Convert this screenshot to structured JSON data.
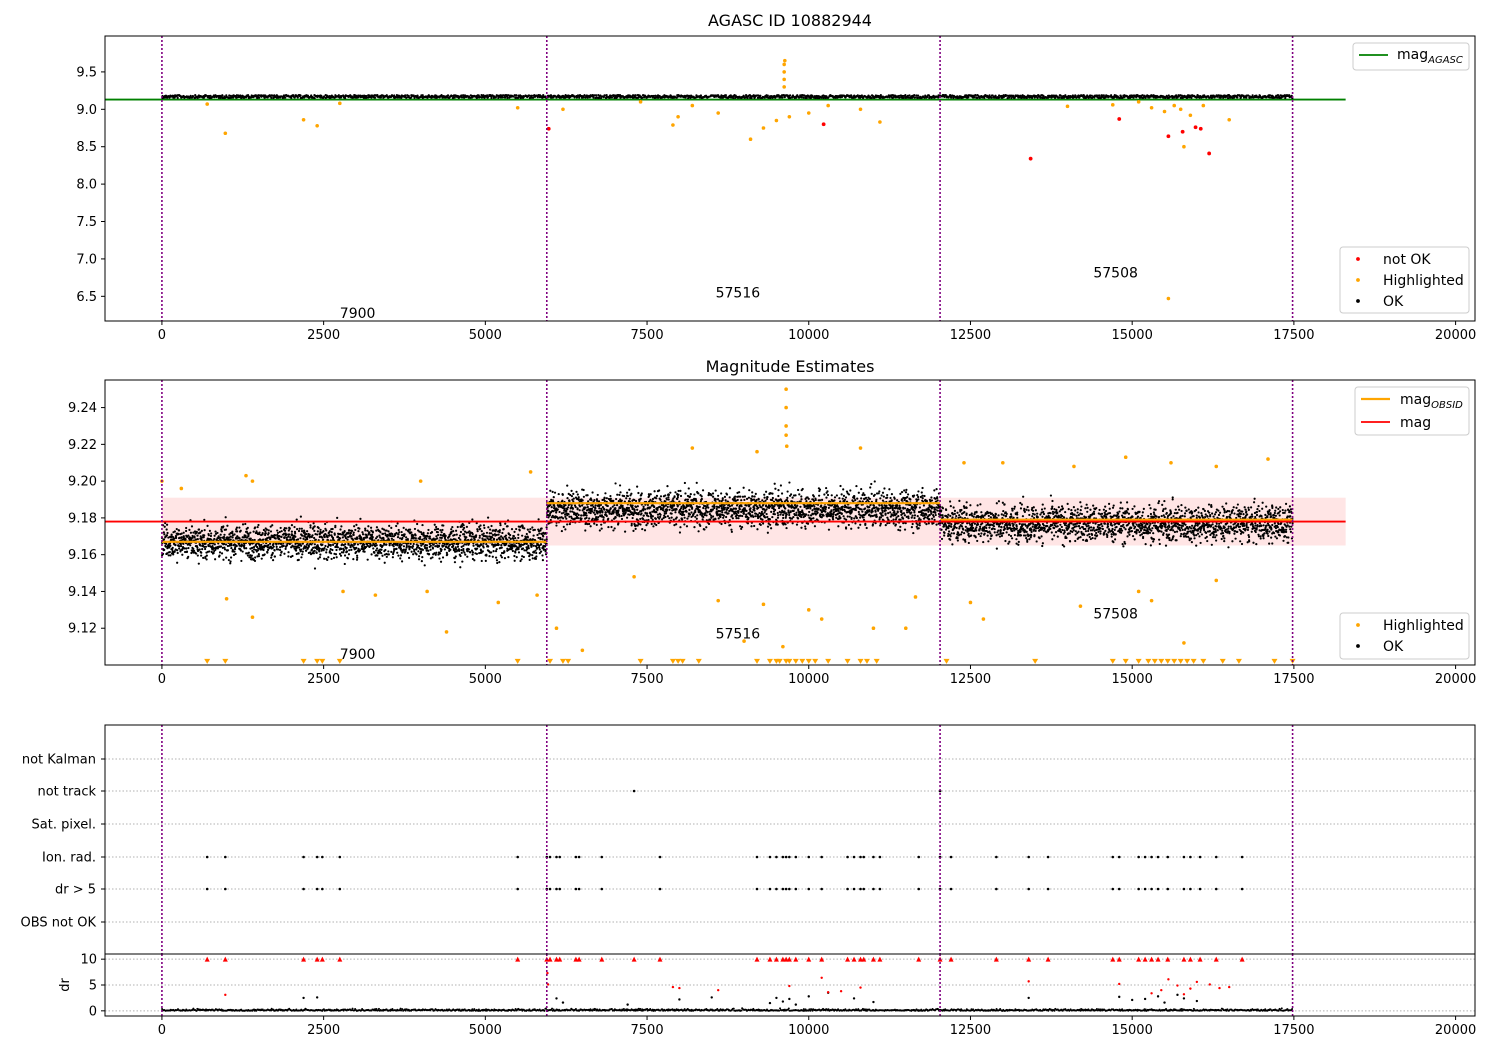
{
  "chart_data": [
    {
      "type": "scatter",
      "title": "AGASC ID 10882944",
      "xlim": [
        -880,
        20300
      ],
      "ylim": [
        6.17,
        9.98
      ],
      "xticks": [
        "0",
        "2500",
        "5000",
        "7500",
        "10000",
        "12500",
        "15000",
        "17500",
        "20000"
      ],
      "yticks": [
        "6.5",
        "7.0",
        "7.5",
        "8.0",
        "8.5",
        "9.0",
        "9.5"
      ],
      "obsid_boundaries": [
        0,
        5950,
        12030,
        17480
      ],
      "obsid_labels": [
        {
          "text": "7900",
          "x": 2750,
          "y": 6.28
        },
        {
          "text": "57516",
          "x": 8560,
          "y": 6.55
        },
        {
          "text": "57508",
          "x": 14400,
          "y": 6.82
        }
      ],
      "reference_lines": [
        {
          "name": "mag_AGASC",
          "y": 9.13,
          "x": [
            -880,
            18300
          ],
          "color": "#008000"
        }
      ],
      "ok_band": {
        "y_low": 9.15,
        "y_high": 9.19,
        "x": [
          0,
          17480
        ]
      },
      "series": [
        {
          "name": "not OK",
          "color": "#ff0000",
          "points": [
            [
              5980,
              8.74
            ],
            [
              10230,
              8.8
            ],
            [
              13430,
              8.34
            ],
            [
              14800,
              8.87
            ],
            [
              15560,
              8.64
            ],
            [
              15780,
              8.7
            ],
            [
              15980,
              8.76
            ],
            [
              16060,
              8.74
            ],
            [
              16190,
              8.41
            ]
          ]
        },
        {
          "name": "Highlighted",
          "color": "#ffa500",
          "points": [
            [
              700,
              9.07
            ],
            [
              980,
              8.68
            ],
            [
              2190,
              8.86
            ],
            [
              2400,
              8.78
            ],
            [
              2750,
              9.08
            ],
            [
              5500,
              9.02
            ],
            [
              6200,
              9.0
            ],
            [
              7400,
              9.1
            ],
            [
              7900,
              8.79
            ],
            [
              7980,
              8.9
            ],
            [
              8200,
              9.05
            ],
            [
              8600,
              8.95
            ],
            [
              9100,
              8.6
            ],
            [
              9300,
              8.75
            ],
            [
              9500,
              8.85
            ],
            [
              9620,
              9.3
            ],
            [
              9620,
              9.4
            ],
            [
              9620,
              9.5
            ],
            [
              9620,
              9.6
            ],
            [
              9630,
              9.65
            ],
            [
              9700,
              8.9
            ],
            [
              10000,
              8.95
            ],
            [
              10300,
              9.05
            ],
            [
              10800,
              9.0
            ],
            [
              11100,
              8.83
            ],
            [
              14000,
              9.04
            ],
            [
              14700,
              9.06
            ],
            [
              15100,
              9.1
            ],
            [
              15300,
              9.02
            ],
            [
              15500,
              8.97
            ],
            [
              15650,
              9.05
            ],
            [
              15750,
              9.0
            ],
            [
              15800,
              8.5
            ],
            [
              15900,
              8.92
            ],
            [
              16100,
              9.05
            ],
            [
              16500,
              8.86
            ],
            [
              15560,
              6.47
            ]
          ]
        },
        {
          "name": "OK",
          "color": "#000000",
          "band": true
        }
      ],
      "legends": [
        {
          "entries": [
            {
              "label": "mag",
              "sub": "AGASC",
              "type": "line",
              "color": "#008000"
            }
          ],
          "loc": "upper right"
        },
        {
          "entries": [
            {
              "label": "not OK",
              "type": "dot",
              "color": "#ff0000"
            },
            {
              "label": "Highlighted",
              "type": "dot",
              "color": "#ffa500"
            },
            {
              "label": "OK",
              "type": "dot",
              "color": "#000000"
            }
          ],
          "loc": "lower right"
        }
      ]
    },
    {
      "type": "scatter",
      "title": "Magnitude Estimates",
      "xlim": [
        -880,
        20300
      ],
      "ylim": [
        9.1,
        9.255
      ],
      "xticks": [
        "0",
        "2500",
        "5000",
        "7500",
        "10000",
        "12500",
        "15000",
        "17500",
        "20000"
      ],
      "yticks": [
        "9.12",
        "9.14",
        "9.16",
        "9.18",
        "9.20",
        "9.22",
        "9.24"
      ],
      "obsid_boundaries": [
        0,
        5950,
        12030,
        17480
      ],
      "obsid_labels": [
        {
          "text": "7900",
          "x": 2750,
          "y": 9.106
        },
        {
          "text": "57516",
          "x": 8560,
          "y": 9.117
        },
        {
          "text": "57508",
          "x": 14400,
          "y": 9.128
        }
      ],
      "mag": {
        "name": "mag",
        "y": 9.178,
        "x": [
          -880,
          18300
        ],
        "band": [
          9.165,
          9.191
        ],
        "color": "#ff0000"
      },
      "mag_obsid": [
        {
          "x": [
            0,
            5950
          ],
          "y": 9.167
        },
        {
          "x": [
            5950,
            12030
          ],
          "y": 9.188
        },
        {
          "x": [
            12030,
            17480
          ],
          "y": 9.179
        }
      ],
      "ok_bands": [
        {
          "x": [
            0,
            5950
          ],
          "y_center": 9.167,
          "spread": 0.012
        },
        {
          "x": [
            5950,
            12030
          ],
          "y_center": 9.185,
          "spread": 0.013
        },
        {
          "x": [
            12030,
            17480
          ],
          "y_center": 9.177,
          "spread": 0.013
        }
      ],
      "series": [
        {
          "name": "Highlighted",
          "color": "#ffa500",
          "points": [
            [
              1000,
              9.136
            ],
            [
              1400,
              9.126
            ],
            [
              2800,
              9.14
            ],
            [
              3300,
              9.138
            ],
            [
              4100,
              9.14
            ],
            [
              4400,
              9.118
            ],
            [
              5200,
              9.134
            ],
            [
              5800,
              9.138
            ],
            [
              6100,
              9.12
            ],
            [
              6500,
              9.108
            ],
            [
              7300,
              9.148
            ],
            [
              8600,
              9.135
            ],
            [
              9000,
              9.113
            ],
            [
              9300,
              9.133
            ],
            [
              9600,
              9.11
            ],
            [
              9650,
              9.24
            ],
            [
              9650,
              9.23
            ],
            [
              9650,
              9.225
            ],
            [
              9650,
              9.25
            ],
            [
              9660,
              9.219
            ],
            [
              10000,
              9.13
            ],
            [
              10200,
              9.125
            ],
            [
              11000,
              9.12
            ],
            [
              11500,
              9.12
            ],
            [
              11650,
              9.137
            ],
            [
              12500,
              9.134
            ],
            [
              12700,
              9.125
            ],
            [
              14200,
              9.132
            ],
            [
              15100,
              9.14
            ],
            [
              15300,
              9.135
            ],
            [
              15800,
              9.112
            ],
            [
              16300,
              9.146
            ],
            [
              0,
              9.2
            ],
            [
              300,
              9.196
            ],
            [
              1300,
              9.203
            ],
            [
              1400,
              9.2
            ],
            [
              4000,
              9.2
            ],
            [
              5700,
              9.205
            ],
            [
              8200,
              9.218
            ],
            [
              9200,
              9.216
            ],
            [
              10800,
              9.218
            ],
            [
              12400,
              9.21
            ],
            [
              13000,
              9.21
            ],
            [
              14100,
              9.208
            ],
            [
              14900,
              9.213
            ],
            [
              15600,
              9.21
            ],
            [
              16300,
              9.208
            ],
            [
              17100,
              9.212
            ]
          ]
        },
        {
          "name": "Highlighted (below range)",
          "color": "#ffa500",
          "marker": "triangle-down",
          "y": 9.102,
          "x": [
            700,
            980,
            2190,
            2400,
            2480,
            2750,
            5500,
            6000,
            6200,
            6280,
            7400,
            7900,
            7980,
            8050,
            8300,
            9200,
            9400,
            9500,
            9550,
            9650,
            9700,
            9800,
            9900,
            10000,
            10100,
            10300,
            10600,
            10800,
            10900,
            11050,
            12130,
            13500,
            14700,
            14900,
            15100,
            15250,
            15350,
            15450,
            15550,
            15650,
            15750,
            15850,
            15950,
            16100,
            16400,
            16650,
            17200,
            17480
          ]
        },
        {
          "name": "OK",
          "color": "#000000",
          "band": true
        }
      ],
      "legends": [
        {
          "entries": [
            {
              "label": "mag",
              "sub": "OBSID",
              "type": "line",
              "color": "#ffa500"
            },
            {
              "label": "mag",
              "type": "line",
              "color": "#ff0000"
            }
          ],
          "loc": "upper right"
        },
        {
          "entries": [
            {
              "label": "Highlighted",
              "type": "dot",
              "color": "#ffa500"
            },
            {
              "label": "OK",
              "type": "dot",
              "color": "#000000"
            }
          ],
          "loc": "lower right"
        }
      ]
    },
    {
      "type": "scatter",
      "title": "",
      "xlim": [
        -880,
        20300
      ],
      "categories": [
        "not Kalman",
        "not track",
        "Sat. pixel.",
        "Ion. rad.",
        "dr > 5",
        "OBS not OK"
      ],
      "obsid_boundaries": [
        0,
        5950,
        12030,
        17480
      ],
      "flags": {
        "not track": [
          7300,
          12030
        ],
        "Ion. rad.": [
          700,
          980,
          2190,
          2400,
          2480,
          2750,
          5500,
          5950,
          6000,
          6100,
          6150,
          6400,
          6450,
          6800,
          7700,
          9200,
          9400,
          9500,
          9600,
          9650,
          9700,
          9800,
          10000,
          10200,
          10600,
          10700,
          10800,
          10850,
          11000,
          11100,
          11700,
          12030,
          12200,
          12900,
          13400,
          13700,
          14700,
          14800,
          15100,
          15200,
          15300,
          15400,
          15550,
          15800,
          15900,
          16050,
          16300,
          16700
        ],
        "dr > 5": [
          700,
          980,
          2190,
          2400,
          2480,
          2750,
          5500,
          5950,
          6000,
          6100,
          6150,
          6400,
          6450,
          6800,
          7700,
          9200,
          9400,
          9500,
          9600,
          9650,
          9700,
          9800,
          10000,
          10200,
          10600,
          10700,
          10800,
          10850,
          11000,
          11100,
          11700,
          12030,
          12200,
          12900,
          13400,
          13700,
          14700,
          14800,
          15100,
          15200,
          15300,
          15400,
          15550,
          15800,
          15900,
          16050,
          16300,
          16700
        ]
      }
    },
    {
      "type": "scatter",
      "title": "",
      "ylabel": "dr",
      "xlim": [
        -880,
        20300
      ],
      "ylim": [
        -1,
        11
      ],
      "xticks": [
        "0",
        "2500",
        "5000",
        "7500",
        "10000",
        "12500",
        "15000",
        "17500",
        "20000"
      ],
      "yticks": [
        "0",
        "5",
        "10"
      ],
      "obsid_boundaries": [
        0,
        5950,
        12030,
        17480
      ],
      "series": [
        {
          "name": "capped",
          "color": "#ff0000",
          "marker": "triangle-up",
          "y": 10,
          "x": [
            700,
            980,
            2190,
            2400,
            2480,
            2750,
            5500,
            5950,
            6000,
            6100,
            6150,
            6400,
            6450,
            6800,
            7300,
            7700,
            9200,
            9400,
            9500,
            9600,
            9650,
            9700,
            9800,
            10000,
            10200,
            10600,
            10700,
            10800,
            10850,
            11000,
            11100,
            11700,
            12030,
            12200,
            12900,
            13400,
            13700,
            14700,
            14800,
            15100,
            15200,
            15300,
            15400,
            15550,
            15800,
            15900,
            16050,
            16300,
            16700
          ]
        },
        {
          "name": "high dr",
          "color": "#ff0000",
          "points": [
            [
              980,
              3.1
            ],
            [
              5960,
              7.3
            ],
            [
              5970,
              5.1
            ],
            [
              7900,
              4.6
            ],
            [
              8000,
              4.4
            ],
            [
              8600,
              4.0
            ],
            [
              9700,
              4.8
            ],
            [
              10200,
              6.4
            ],
            [
              10300,
              3.6
            ],
            [
              10500,
              3.8
            ],
            [
              10800,
              4.5
            ],
            [
              13400,
              5.7
            ],
            [
              14800,
              5.2
            ],
            [
              15300,
              3.4
            ],
            [
              15560,
              6.1
            ],
            [
              15700,
              4.9
            ],
            [
              15800,
              3.2
            ],
            [
              15900,
              4.3
            ],
            [
              16000,
              5.6
            ],
            [
              16200,
              5.1
            ],
            [
              16350,
              4.4
            ],
            [
              16500,
              4.6
            ],
            [
              15450,
              4.0
            ]
          ]
        },
        {
          "name": "dr",
          "color": "#000000",
          "points": [
            [
              2190,
              2.5
            ],
            [
              2400,
              2.6
            ],
            [
              6100,
              2.4
            ],
            [
              6200,
              1.6
            ],
            [
              7200,
              1.2
            ],
            [
              8000,
              2.2
            ],
            [
              8500,
              2.6
            ],
            [
              9400,
              1.5
            ],
            [
              9500,
              2.5
            ],
            [
              9600,
              1.8
            ],
            [
              9700,
              2.3
            ],
            [
              9800,
              1.2
            ],
            [
              10000,
              2.8
            ],
            [
              10300,
              3.5
            ],
            [
              10700,
              2.4
            ],
            [
              11000,
              1.7
            ],
            [
              13400,
              2.5
            ],
            [
              14800,
              2.7
            ],
            [
              15000,
              2.1
            ],
            [
              15200,
              2.3
            ],
            [
              15400,
              2.8
            ],
            [
              15500,
              1.6
            ],
            [
              15700,
              3.1
            ],
            [
              15800,
              2.4
            ],
            [
              16000,
              1.9
            ]
          ]
        }
      ]
    }
  ]
}
